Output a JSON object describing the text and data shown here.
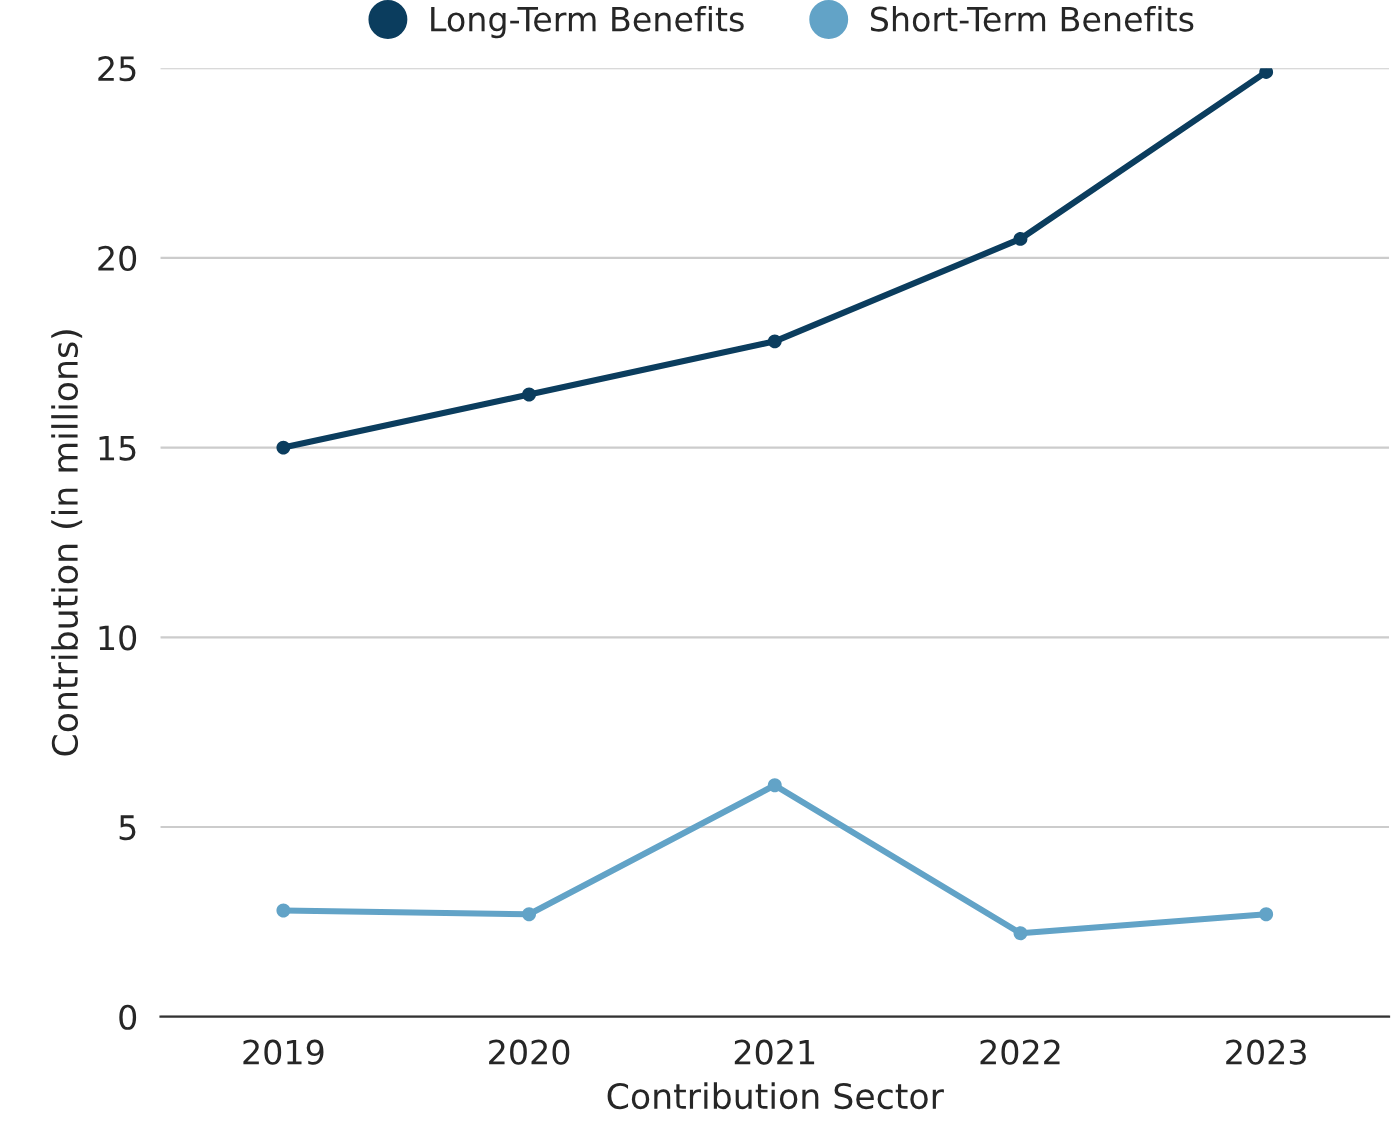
{
  "chart_data": {
    "type": "line",
    "xlabel": "Contribution Sector",
    "ylabel": "Contribution (in millions)",
    "categories": [
      "2019",
      "2020",
      "2021",
      "2022",
      "2023"
    ],
    "series": [
      {
        "name": "Long-Term Benefits",
        "color": "#0b3d5e",
        "values": [
          15.0,
          16.4,
          17.8,
          20.5,
          24.9
        ]
      },
      {
        "name": "Short-Term Benefits",
        "color": "#62a3c7",
        "values": [
          2.8,
          2.7,
          6.1,
          2.2,
          2.7
        ]
      }
    ],
    "ylim": [
      0,
      25
    ],
    "yticks": [
      0,
      5,
      10,
      15,
      20,
      25
    ],
    "grid": "y",
    "legend": "top",
    "marker": "circle",
    "line_style": "solid"
  }
}
